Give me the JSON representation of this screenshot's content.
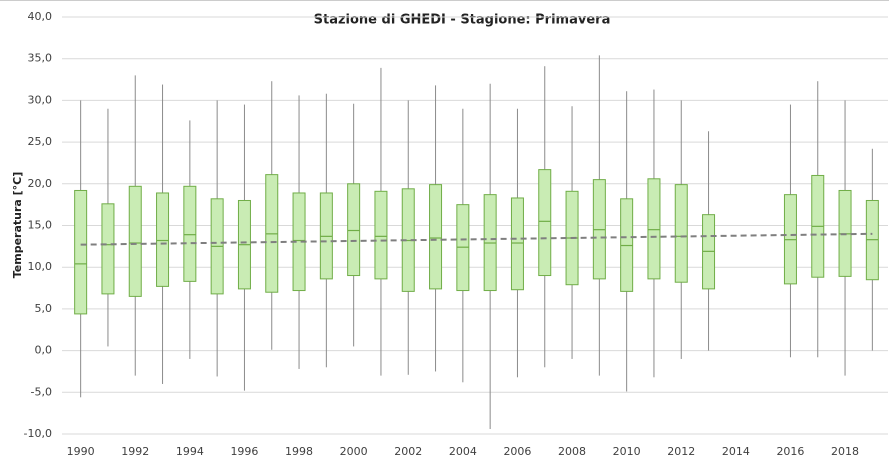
{
  "chart_data": {
    "type": "box",
    "title": "Stazione di GHEDI - Stagione: Primavera",
    "y_label": "Temperatura [°C]",
    "categories": [
      "1990",
      null,
      "1992",
      null,
      "1994",
      null,
      "1996",
      null,
      "1998",
      null,
      "2000",
      null,
      "2002",
      null,
      "2004",
      null,
      "2006",
      null,
      "2008",
      null,
      "2010",
      null,
      "2012",
      null,
      "2014",
      null,
      "2016",
      null,
      "2018",
      null
    ],
    "series": [
      {
        "color": "#70ad47",
        "fill": "#c9ecb4",
        "min": [
          -5.6,
          0.5,
          -3.0,
          -4.0,
          -1.0,
          -3.1,
          -4.8,
          0.1,
          -2.2,
          -2.0,
          0.5,
          -3.0,
          -2.9,
          -2.5,
          -3.8,
          -9.4,
          -3.2,
          -2.0,
          -1.0,
          -3.0,
          -4.9,
          -3.2,
          -1.0,
          0.0,
          null,
          null,
          -0.8,
          -0.8,
          -3.0,
          0.0
        ],
        "q1": [
          4.4,
          6.8,
          6.5,
          7.7,
          8.3,
          6.8,
          7.4,
          7.0,
          7.2,
          8.6,
          9.0,
          8.6,
          7.1,
          7.4,
          7.2,
          7.2,
          7.3,
          9.0,
          7.9,
          8.6,
          7.1,
          8.6,
          8.2,
          7.4,
          null,
          null,
          8.0,
          8.8,
          8.9,
          8.5
        ],
        "median": [
          10.4,
          12.7,
          12.9,
          13.2,
          13.9,
          12.5,
          12.7,
          14.0,
          13.2,
          13.7,
          14.4,
          13.7,
          13.2,
          13.5,
          12.4,
          12.9,
          12.9,
          15.5,
          13.5,
          14.5,
          12.6,
          14.5,
          13.7,
          11.9,
          null,
          null,
          13.3,
          14.9,
          14.0,
          13.3
        ],
        "q3": [
          19.2,
          17.6,
          19.7,
          18.9,
          19.7,
          18.2,
          18.0,
          21.1,
          18.9,
          18.9,
          20.0,
          19.1,
          19.4,
          19.9,
          17.5,
          18.7,
          18.3,
          21.7,
          19.1,
          20.5,
          18.2,
          20.6,
          19.9,
          16.3,
          null,
          null,
          18.7,
          21.0,
          19.2,
          18.0
        ],
        "max": [
          30.0,
          29.0,
          33.0,
          31.9,
          27.6,
          30.0,
          29.5,
          32.3,
          30.6,
          30.8,
          29.6,
          33.9,
          30.0,
          31.8,
          29.0,
          32.0,
          29.0,
          34.1,
          29.3,
          35.4,
          31.1,
          31.3,
          30.0,
          26.3,
          null,
          null,
          29.5,
          32.3,
          30.0,
          24.2
        ]
      }
    ],
    "trendline": {
      "color": "#7f7f7f",
      "values": [
        12.7,
        14.0
      ]
    },
    "ylim": [
      -10,
      40
    ],
    "yticks": [
      {
        "value": -10,
        "label": "-10,0"
      },
      {
        "value": -5,
        "label": "-5,0"
      },
      {
        "value": 0,
        "label": "0,0"
      },
      {
        "value": 5,
        "label": "5,0"
      },
      {
        "value": 10,
        "label": "10,0"
      },
      {
        "value": 15,
        "label": "15,0"
      },
      {
        "value": 20,
        "label": "20,0"
      },
      {
        "value": 25,
        "label": "25,0"
      },
      {
        "value": 30,
        "label": "30,0"
      },
      {
        "value": 35,
        "label": "35,0"
      },
      {
        "value": 40,
        "label": "40,0"
      }
    ],
    "grid": true
  }
}
